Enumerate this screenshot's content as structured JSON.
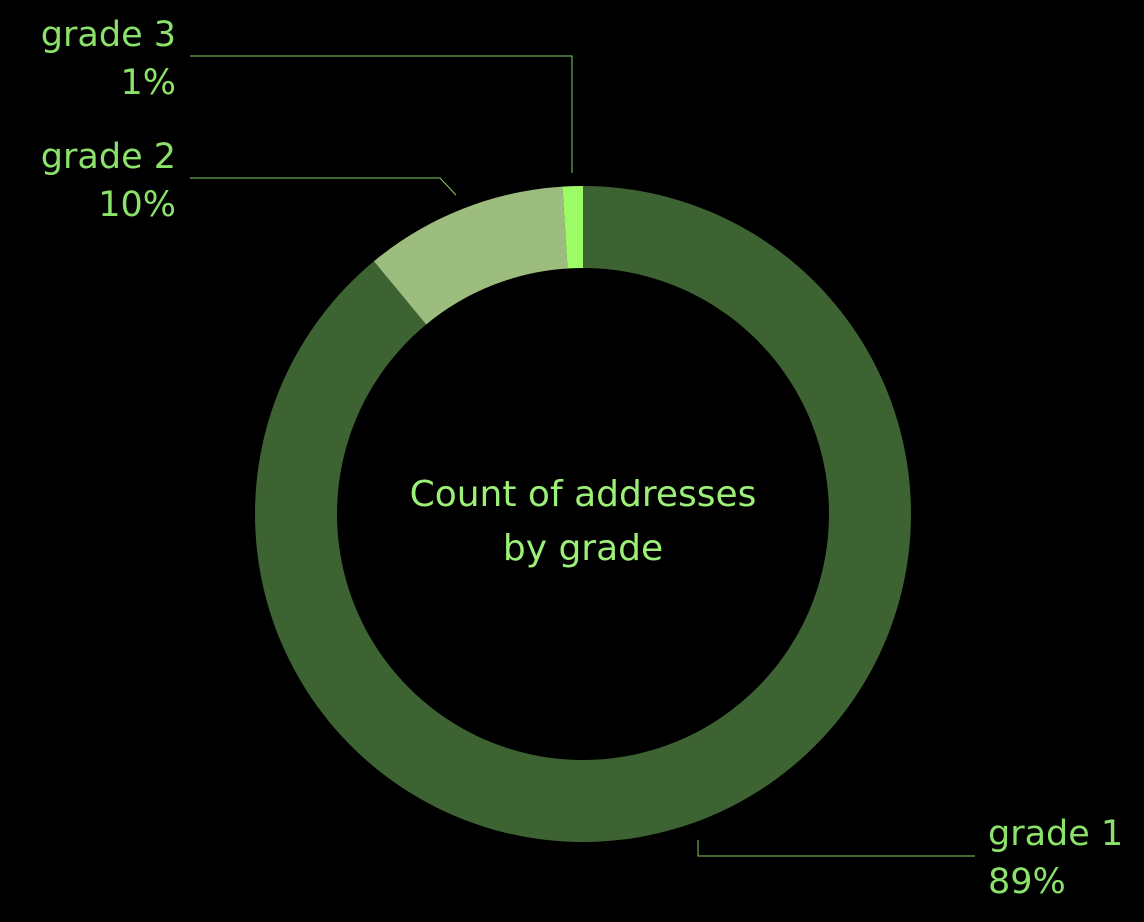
{
  "chart_data": {
    "type": "pie",
    "title": "Count of addresses by grade",
    "title_lines": [
      "Count of addresses",
      "by grade"
    ],
    "donut": true,
    "categories": [
      "grade 1",
      "grade 2",
      "grade 3"
    ],
    "values": [
      89,
      10,
      1
    ],
    "value_labels": [
      "89%",
      "10%",
      "1%"
    ],
    "colors": [
      "#3e6332",
      "#9cbd7d",
      "#9dfc66"
    ],
    "label_color": "#8be26a",
    "leader_line_color": "#7fcf5f",
    "legend": "none"
  }
}
